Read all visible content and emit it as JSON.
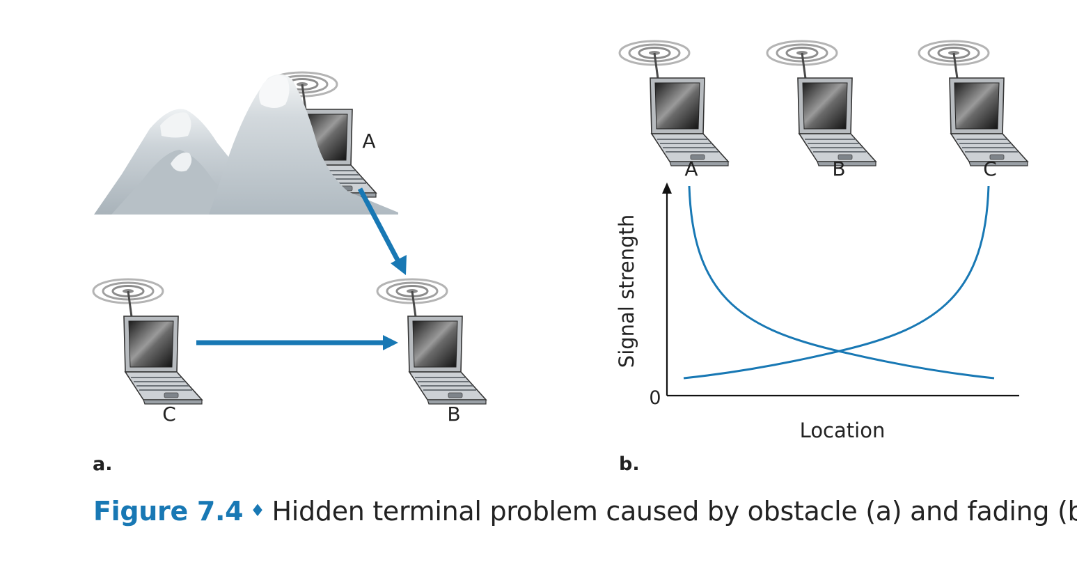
{
  "panel_a": {
    "tag": "a.",
    "nodes": {
      "a": "A",
      "b": "B",
      "c": "C"
    }
  },
  "panel_b": {
    "tag": "b.",
    "nodes": {
      "a": "A",
      "b": "B",
      "c": "C"
    },
    "y_label": "Signal strength",
    "x_label": "Location",
    "origin_label": "0"
  },
  "caption": {
    "figure": "Figure 7.4",
    "separator": "♦",
    "text": "Hidden terminal problem caused by obstacle (a) and fading (b)"
  },
  "colors": {
    "accent": "#1878b4",
    "text": "#222222",
    "mountain": "#c4ccd2",
    "laptop_body": "#c8ccd0",
    "screen": "#3a3a3a"
  }
}
